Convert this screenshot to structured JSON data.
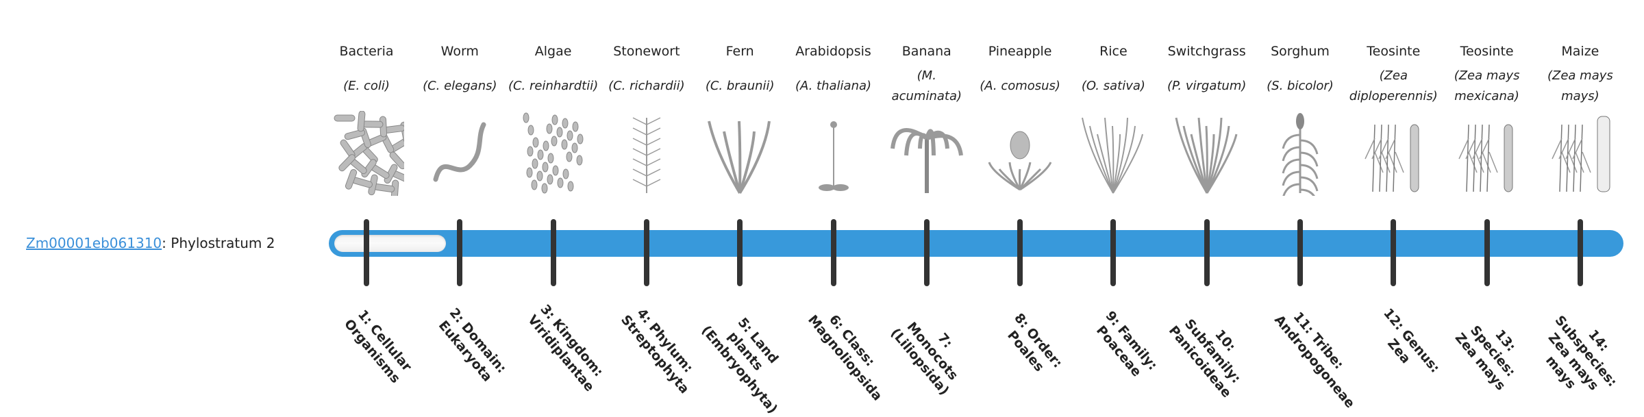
{
  "gene": {
    "id": "Zm00001eb061310",
    "separator": ": ",
    "label": "Phylostratum 2"
  },
  "phylostratum_value": 2,
  "phylostratum_max": 14,
  "colors": {
    "bar": "#3899db",
    "tick": "#333333",
    "link": "#3a8fd9"
  },
  "strata": [
    {
      "common": "Bacteria",
      "latin": "(E. coli)",
      "rank": "1: Cellular Organisms",
      "icon": "bacteria-icon"
    },
    {
      "common": "Worm",
      "latin": "(C. elegans)",
      "rank": "2: Domain: Eukaryota",
      "icon": "worm-icon"
    },
    {
      "common": "Algae",
      "latin": "(C. reinhardtii)",
      "rank": "3: Kingdom: Viridiplantae",
      "icon": "algae-icon"
    },
    {
      "common": "Stonewort",
      "latin": "(C. richardii)",
      "rank": "4: Phylum: Streptophyta",
      "icon": "stonewort-icon"
    },
    {
      "common": "Fern",
      "latin": "(C. braunii)",
      "rank": "5: Land plants (Embryophyta)",
      "icon": "fern-icon"
    },
    {
      "common": "Arabidopsis",
      "latin": "(A. thaliana)",
      "rank": "6: Class: Magnoliopsida",
      "icon": "arabidopsis-icon"
    },
    {
      "common": "Banana",
      "latin": "(M. acuminata)",
      "rank": "7: Monocots (Liliopsida)",
      "icon": "banana-icon"
    },
    {
      "common": "Pineapple",
      "latin": "(A. comosus)",
      "rank": "8: Order: Poales",
      "icon": "pineapple-icon"
    },
    {
      "common": "Rice",
      "latin": "(O. sativa)",
      "rank": "9: Family: Poaceae",
      "icon": "rice-icon"
    },
    {
      "common": "Switchgrass",
      "latin": "(P. virgatum)",
      "rank": "10: Subfamily: Panicoideae",
      "icon": "switchgrass-icon"
    },
    {
      "common": "Sorghum",
      "latin": "(S. bicolor)",
      "rank": "11: Tribe: Andropogoneae",
      "icon": "sorghum-icon"
    },
    {
      "common": "Teosinte",
      "latin": "(Zea diploperennis)",
      "rank": "12: Genus: Zea",
      "icon": "teosinte-icon"
    },
    {
      "common": "Teosinte",
      "latin": "(Zea mays mexicana)",
      "rank": "13: Species: Zea mays",
      "icon": "teosinte-mexicana-icon"
    },
    {
      "common": "Maize",
      "latin": "(Zea mays mays)",
      "rank": "14: Subspecies: Zea mays mays",
      "icon": "maize-icon"
    }
  ]
}
